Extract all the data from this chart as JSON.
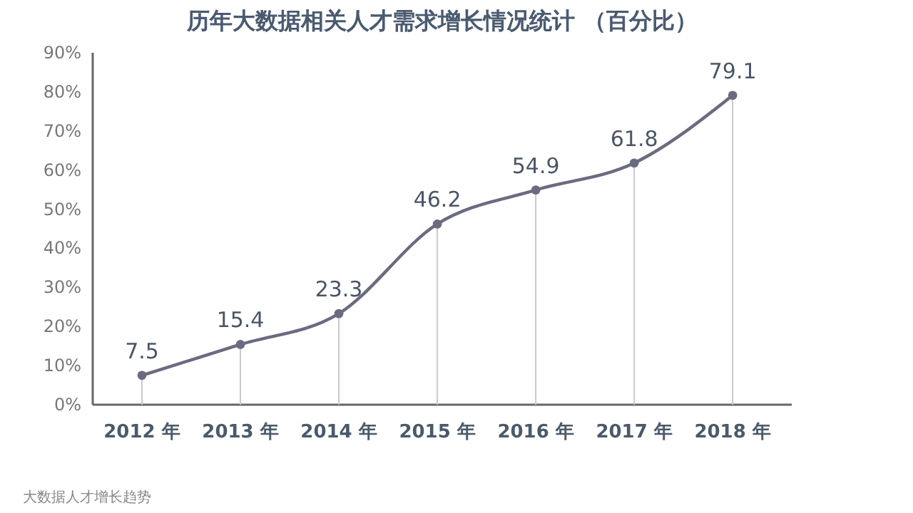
{
  "chart_data": {
    "type": "line",
    "title": "历年大数据相关人才需求增长情况统计 （百分比）",
    "categories": [
      "2012 年",
      "2013 年",
      "2014 年",
      "2015 年",
      "2016 年",
      "2017 年",
      "2018 年"
    ],
    "series": [
      {
        "color": "#6b6b80",
        "values": [
          7.5,
          15.4,
          23.3,
          46.2,
          54.9,
          61.8,
          79.1
        ]
      }
    ],
    "ylim": [
      0,
      90
    ],
    "yticks": [
      {
        "value": 0,
        "label": "0%"
      },
      {
        "value": 10,
        "label": "10%"
      },
      {
        "value": 20,
        "label": "20%"
      },
      {
        "value": 30,
        "label": "30%"
      },
      {
        "value": 40,
        "label": "40%"
      },
      {
        "value": 50,
        "label": "50%"
      },
      {
        "value": 60,
        "label": "60%"
      },
      {
        "value": 70,
        "label": "70%"
      },
      {
        "value": 80,
        "label": "80%"
      },
      {
        "value": 90,
        "label": "90%"
      }
    ],
    "data_labels": true,
    "marker": "circle",
    "grid": "x",
    "annotations": [
      "大数据人才增长趋势"
    ]
  }
}
